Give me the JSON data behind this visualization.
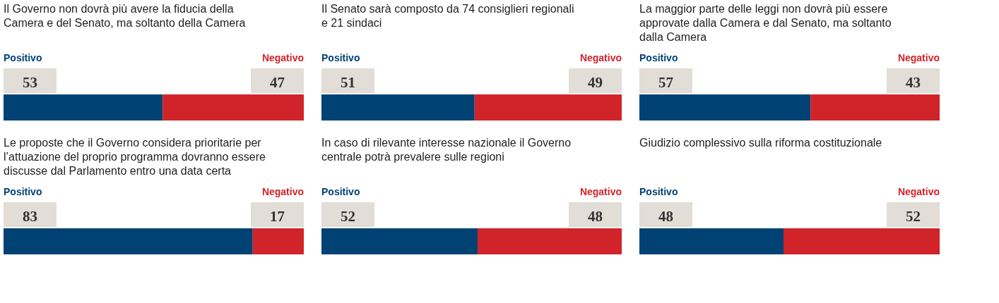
{
  "chart_data": [
    {
      "type": "bar",
      "orientation": "horizontal",
      "stacked": true,
      "data_labels": true,
      "tick_labels": false,
      "title": "Il Governo non dovrà più avere la fiducia della Camera e del Senato, ma soltanto della Camera",
      "categories": [
        null
      ],
      "series": [
        {
          "name": "Positivo",
          "color": "#004274",
          "values": [
            53
          ]
        },
        {
          "name": "Negativo",
          "color": "#d1232a",
          "values": [
            47
          ]
        }
      ]
    },
    {
      "type": "bar",
      "orientation": "horizontal",
      "stacked": true,
      "data_labels": true,
      "tick_labels": false,
      "title": "Il Senato sarà composto da 74 consiglieri regionali e 21 sindaci",
      "categories": [
        null
      ],
      "series": [
        {
          "name": "Positivo",
          "color": "#004274",
          "values": [
            51
          ]
        },
        {
          "name": "Negativo",
          "color": "#d1232a",
          "values": [
            49
          ]
        }
      ]
    },
    {
      "type": "bar",
      "orientation": "horizontal",
      "stacked": true,
      "data_labels": true,
      "tick_labels": false,
      "title": "La maggior parte delle leggi non dovrà più essere approvate dalla Camera e dal Senato, ma soltanto dalla Camera",
      "categories": [
        null
      ],
      "series": [
        {
          "name": "Positivo",
          "color": "#004274",
          "values": [
            57
          ]
        },
        {
          "name": "Negativo",
          "color": "#d1232a",
          "values": [
            43
          ]
        }
      ]
    },
    {
      "type": "bar",
      "orientation": "horizontal",
      "stacked": true,
      "data_labels": true,
      "tick_labels": false,
      "title": "Le proposte che il Governo considera prioritarie per l’attuazione del proprio programma dovranno essere discusse dal Parlamento entro una data certa",
      "categories": [
        null
      ],
      "series": [
        {
          "name": "Positivo",
          "color": "#004274",
          "values": [
            83
          ]
        },
        {
          "name": "Negativo",
          "color": "#d1232a",
          "values": [
            17
          ]
        }
      ]
    },
    {
      "type": "bar",
      "orientation": "horizontal",
      "stacked": true,
      "data_labels": true,
      "tick_labels": false,
      "title": "In caso di rilevante interesse nazionale il Governo centrale potrà prevalere sulle regioni",
      "categories": [
        null
      ],
      "series": [
        {
          "name": "Positivo",
          "color": "#004274",
          "values": [
            52
          ]
        },
        {
          "name": "Negativo",
          "color": "#d1232a",
          "values": [
            48
          ]
        }
      ]
    },
    {
      "type": "bar",
      "orientation": "horizontal",
      "stacked": true,
      "data_labels": true,
      "tick_labels": false,
      "title": "Giudizio complessivo sulla riforma costituzionale",
      "categories": [
        null
      ],
      "series": [
        {
          "name": "Positivo",
          "color": "#004274",
          "values": [
            48
          ]
        },
        {
          "name": "Negativo",
          "color": "#d1232a",
          "values": [
            52
          ]
        }
      ]
    }
  ]
}
